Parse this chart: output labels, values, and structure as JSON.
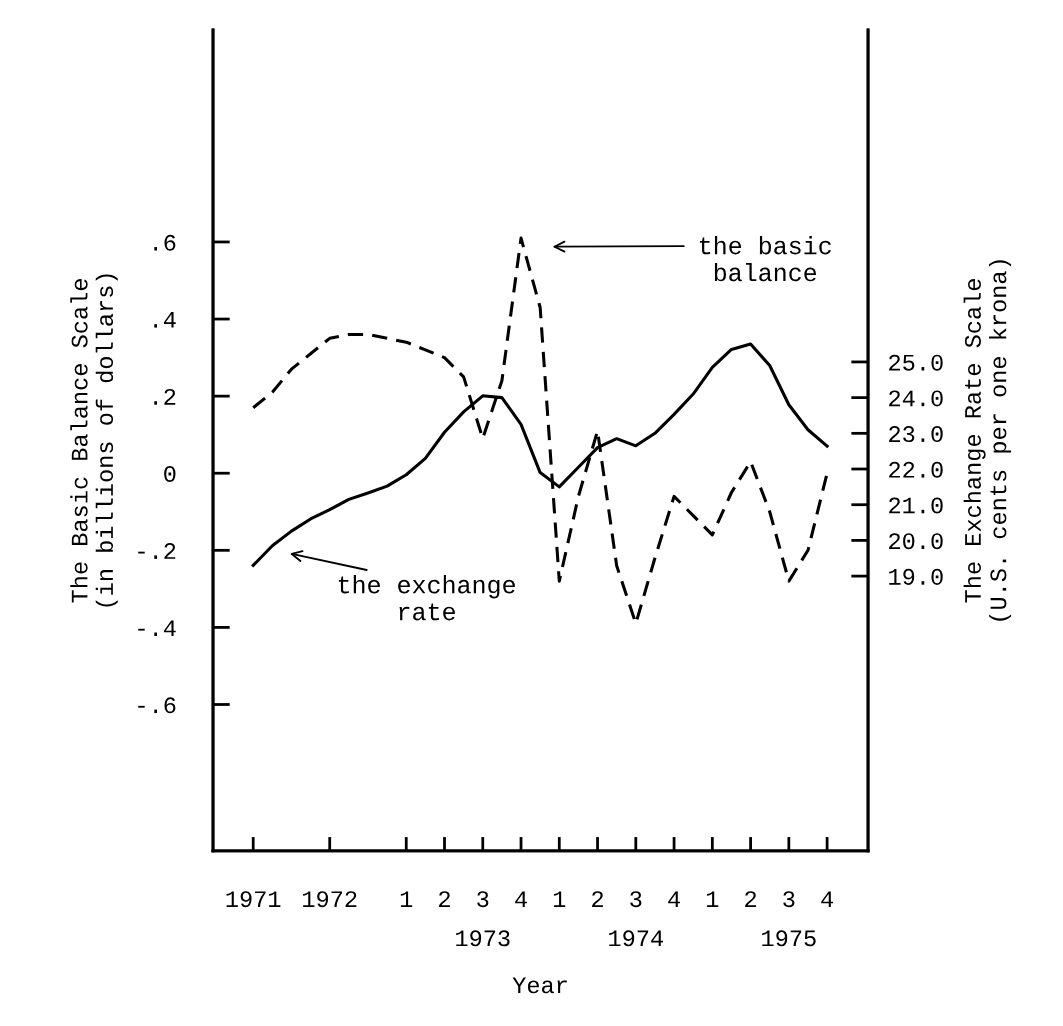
{
  "chart_data": {
    "type": "line",
    "xlabel": "Year",
    "ylabel": "The Basic Balance Scale\n(in billions of dollars)",
    "y2label": "The Exchange Rate Scale\n(U.S. cents per one krona)",
    "categories": [
      "1971",
      null,
      null,
      null,
      "1972",
      null,
      null,
      null,
      "1",
      null,
      "2",
      null,
      "3\n1973",
      null,
      "4",
      null,
      "1",
      null,
      "2",
      null,
      "3\n1974",
      null,
      "4",
      null,
      "1",
      null,
      "2",
      null,
      "3\n1975",
      null,
      "4"
    ],
    "ylim": [
      -0.98,
      1.15
    ],
    "yticks": [
      {
        "value": 0.6,
        "label": ".6"
      },
      {
        "value": 0.4,
        "label": ".4"
      },
      {
        "value": 0.2,
        "label": ".2"
      },
      0,
      {
        "value": -0.2,
        "label": "-.2"
      },
      {
        "value": -0.4,
        "label": "-.4"
      },
      {
        "value": -0.6,
        "label": "-.6"
      }
    ],
    "y2lim": [
      11.3,
      34.3
    ],
    "y2ticks": [
      {
        "value": 25,
        "label": "25.0"
      },
      {
        "value": 24,
        "label": "24.0"
      },
      {
        "value": 23,
        "label": "23.0"
      },
      {
        "value": 22,
        "label": "22.0"
      },
      {
        "value": 21,
        "label": "21.0"
      },
      {
        "value": 20,
        "label": "20.0"
      },
      {
        "value": 19,
        "label": "19.0"
      }
    ],
    "grid": false,
    "marker": "none",
    "series": [
      {
        "color": "#000000",
        "line_style": "dashed",
        "values": [
          0.17,
          0.21,
          0.27,
          0.31,
          0.35,
          0.36,
          0.36,
          0.35,
          0.34,
          0.32,
          0.3,
          0.25,
          0.09,
          0.24,
          0.61,
          0.43,
          -0.28,
          -0.06,
          0.11,
          -0.24,
          -0.39,
          -0.22,
          -0.06,
          -0.11,
          -0.16,
          -0.05,
          0.03,
          -0.1,
          -0.28,
          -0.2,
          0.0
        ]
      },
      {
        "color": "#000000",
        "line_style": "solid",
        "axis": "y2",
        "values": [
          19.3,
          19.85,
          20.26,
          20.6,
          20.86,
          21.15,
          21.33,
          21.52,
          21.84,
          22.3,
          23.03,
          23.6,
          24.05,
          24.0,
          23.25,
          21.9,
          21.5,
          22.05,
          22.6,
          22.85,
          22.65,
          23.0,
          23.53,
          24.1,
          24.85,
          25.35,
          25.5,
          24.9,
          23.8,
          23.1,
          22.64
        ]
      }
    ],
    "annotations": [
      "the basic\nbalance",
      "the exchange\nrate"
    ]
  }
}
